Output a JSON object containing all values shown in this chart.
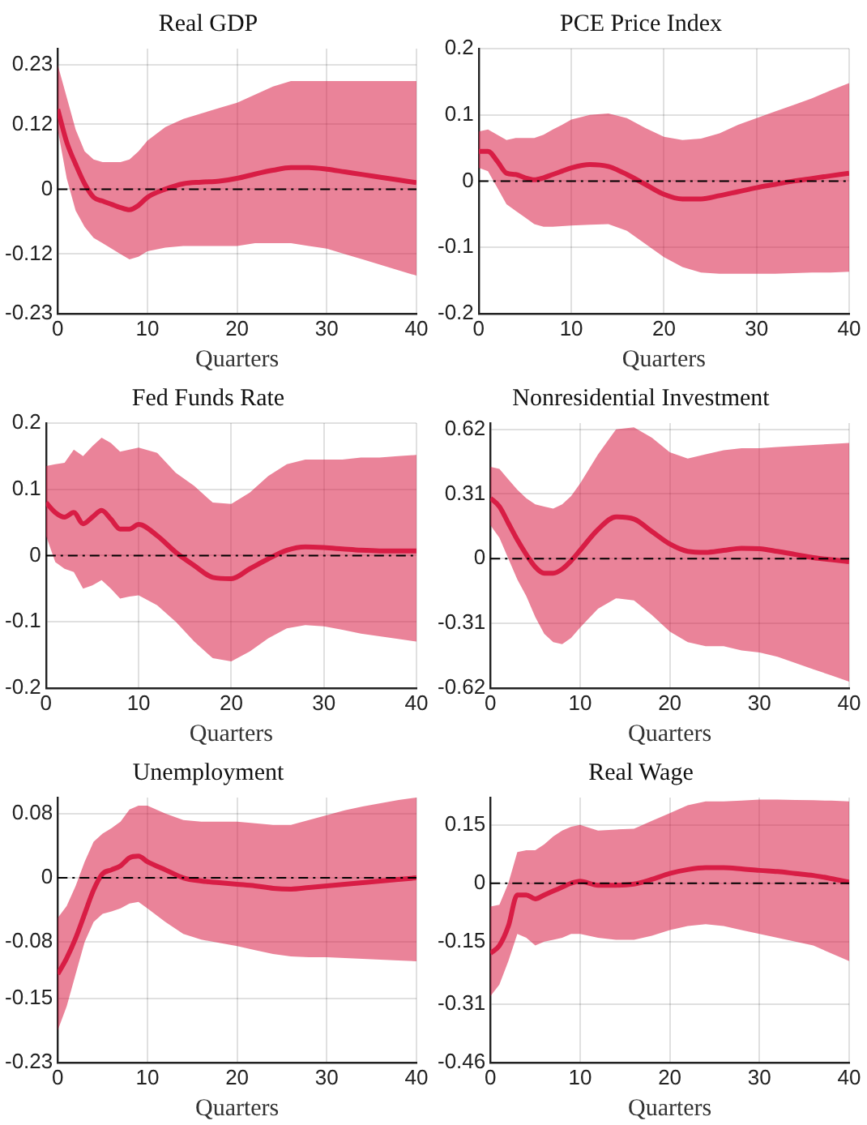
{
  "chart_data": [
    {
      "type": "line",
      "title": "Real GDP",
      "xlabel": "Quarters",
      "xlim": [
        0,
        40
      ],
      "xticks": [
        0,
        10,
        20,
        30,
        40
      ],
      "ylim": [
        -0.23,
        0.26
      ],
      "yticks": [
        -0.23,
        -0.12,
        0,
        0.12,
        0.23
      ],
      "grid": true,
      "ref_lines": [
        {
          "axis": "y",
          "value": 0,
          "color": "#000000",
          "line_style": "dashed"
        }
      ],
      "x": [
        0,
        1,
        2,
        3,
        4,
        5,
        6,
        7,
        8,
        9,
        10,
        12,
        14,
        16,
        18,
        20,
        22,
        24,
        26,
        28,
        30,
        32,
        34,
        36,
        38,
        40
      ],
      "series": [
        {
          "color": "#d81e45",
          "values": [
            0.148,
            0.087,
            0.046,
            0.01,
            -0.015,
            -0.022,
            -0.028,
            -0.034,
            -0.038,
            -0.03,
            -0.015,
            0.0,
            0.01,
            0.013,
            0.015,
            0.02,
            0.028,
            0.035,
            0.04,
            0.04,
            0.037,
            0.032,
            0.027,
            0.022,
            0.017,
            0.012
          ],
          "upper": [
            0.23,
            0.17,
            0.11,
            0.07,
            0.055,
            0.05,
            0.05,
            0.05,
            0.055,
            0.07,
            0.09,
            0.115,
            0.13,
            0.14,
            0.15,
            0.16,
            0.175,
            0.19,
            0.2,
            0.2,
            0.2,
            0.2,
            0.2,
            0.2,
            0.2,
            0.2
          ],
          "lower": [
            0.11,
            0.02,
            -0.04,
            -0.07,
            -0.09,
            -0.1,
            -0.11,
            -0.12,
            -0.13,
            -0.125,
            -0.115,
            -0.108,
            -0.105,
            -0.105,
            -0.105,
            -0.105,
            -0.1,
            -0.1,
            -0.1,
            -0.105,
            -0.11,
            -0.12,
            -0.13,
            -0.14,
            -0.15,
            -0.16
          ]
        }
      ]
    },
    {
      "type": "line",
      "title": "PCE Price Index",
      "xlabel": "Quarters",
      "xlim": [
        0,
        40
      ],
      "xticks": [
        0,
        10,
        20,
        30,
        40
      ],
      "ylim": [
        -0.2,
        0.2
      ],
      "yticks": [
        -0.2,
        -0.1,
        0,
        0.1,
        0.2
      ],
      "grid": true,
      "ref_lines": [
        {
          "axis": "y",
          "value": 0,
          "color": "#000000",
          "line_style": "dashed"
        }
      ],
      "x": [
        0,
        1,
        2,
        3,
        4,
        5,
        6,
        7,
        8,
        9,
        10,
        12,
        14,
        16,
        18,
        20,
        22,
        24,
        26,
        28,
        30,
        32,
        34,
        36,
        38,
        40
      ],
      "series": [
        {
          "color": "#d81e45",
          "values": [
            0.045,
            0.045,
            0.03,
            0.012,
            0.01,
            0.005,
            0.002,
            0.005,
            0.01,
            0.015,
            0.02,
            0.025,
            0.022,
            0.01,
            -0.005,
            -0.02,
            -0.027,
            -0.027,
            -0.022,
            -0.016,
            -0.01,
            -0.005,
            0.0,
            0.004,
            0.008,
            0.012
          ],
          "upper": [
            0.075,
            0.078,
            0.07,
            0.062,
            0.065,
            0.065,
            0.065,
            0.07,
            0.078,
            0.085,
            0.093,
            0.1,
            0.102,
            0.095,
            0.08,
            0.067,
            0.062,
            0.064,
            0.072,
            0.085,
            0.095,
            0.105,
            0.115,
            0.125,
            0.137,
            0.148
          ],
          "lower": [
            0.02,
            0.015,
            -0.01,
            -0.035,
            -0.045,
            -0.055,
            -0.065,
            -0.069,
            -0.069,
            -0.068,
            -0.067,
            -0.066,
            -0.065,
            -0.075,
            -0.095,
            -0.115,
            -0.13,
            -0.138,
            -0.14,
            -0.14,
            -0.14,
            -0.14,
            -0.139,
            -0.138,
            -0.138,
            -0.137
          ]
        }
      ]
    },
    {
      "type": "line",
      "title": "Fed Funds Rate",
      "xlabel": "Quarters",
      "xlim": [
        0,
        40
      ],
      "xticks": [
        0,
        10,
        20,
        30,
        40
      ],
      "ylim": [
        -0.2,
        0.2
      ],
      "yticks": [
        -0.2,
        -0.1,
        0,
        0.1,
        0.2
      ],
      "grid": true,
      "ref_lines": [
        {
          "axis": "y",
          "value": 0,
          "color": "#000000",
          "line_style": "dashed"
        }
      ],
      "x": [
        0,
        1,
        2,
        3,
        4,
        5,
        6,
        7,
        8,
        9,
        10,
        12,
        14,
        16,
        18,
        20,
        22,
        24,
        26,
        28,
        30,
        32,
        34,
        36,
        38,
        40
      ],
      "series": [
        {
          "color": "#d81e45",
          "values": [
            0.08,
            0.065,
            0.058,
            0.065,
            0.048,
            0.058,
            0.068,
            0.055,
            0.04,
            0.04,
            0.047,
            0.03,
            0.005,
            -0.015,
            -0.033,
            -0.035,
            -0.02,
            -0.005,
            0.008,
            0.013,
            0.012,
            0.01,
            0.008,
            0.007,
            0.007,
            0.007
          ],
          "upper": [
            0.135,
            0.138,
            0.14,
            0.16,
            0.15,
            0.165,
            0.178,
            0.17,
            0.157,
            0.16,
            0.163,
            0.155,
            0.125,
            0.105,
            0.08,
            0.078,
            0.095,
            0.12,
            0.138,
            0.145,
            0.145,
            0.145,
            0.148,
            0.148,
            0.15,
            0.152
          ],
          "lower": [
            0.03,
            -0.01,
            -0.02,
            -0.025,
            -0.05,
            -0.045,
            -0.037,
            -0.05,
            -0.065,
            -0.062,
            -0.06,
            -0.075,
            -0.1,
            -0.13,
            -0.155,
            -0.16,
            -0.145,
            -0.125,
            -0.11,
            -0.105,
            -0.107,
            -0.112,
            -0.118,
            -0.122,
            -0.126,
            -0.13
          ]
        }
      ]
    },
    {
      "type": "line",
      "title": "Nonresidential Investment",
      "xlabel": "Quarters",
      "xlim": [
        0,
        40
      ],
      "xticks": [
        0,
        10,
        20,
        30,
        40
      ],
      "ylim": [
        -0.62,
        0.65
      ],
      "yticks": [
        -0.62,
        -0.31,
        0,
        0.31,
        0.62
      ],
      "grid": true,
      "ref_lines": [
        {
          "axis": "y",
          "value": 0,
          "color": "#000000",
          "line_style": "dashed"
        }
      ],
      "x": [
        0,
        1,
        2,
        3,
        4,
        5,
        6,
        7,
        8,
        9,
        10,
        12,
        14,
        16,
        18,
        20,
        22,
        24,
        26,
        28,
        30,
        32,
        34,
        36,
        38,
        40
      ],
      "series": [
        {
          "color": "#d81e45",
          "values": [
            0.29,
            0.25,
            0.17,
            0.09,
            0.02,
            -0.04,
            -0.07,
            -0.07,
            -0.05,
            -0.01,
            0.04,
            0.14,
            0.2,
            0.19,
            0.13,
            0.07,
            0.035,
            0.03,
            0.04,
            0.05,
            0.048,
            0.035,
            0.02,
            0.005,
            -0.005,
            -0.015
          ],
          "upper": [
            0.44,
            0.43,
            0.38,
            0.33,
            0.29,
            0.26,
            0.25,
            0.24,
            0.26,
            0.3,
            0.36,
            0.5,
            0.62,
            0.63,
            0.58,
            0.51,
            0.48,
            0.5,
            0.52,
            0.53,
            0.53,
            0.535,
            0.54,
            0.545,
            0.55,
            0.555
          ],
          "lower": [
            0.16,
            0.1,
            0.0,
            -0.1,
            -0.18,
            -0.28,
            -0.36,
            -0.4,
            -0.41,
            -0.38,
            -0.33,
            -0.24,
            -0.19,
            -0.2,
            -0.27,
            -0.35,
            -0.4,
            -0.42,
            -0.42,
            -0.44,
            -0.45,
            -0.47,
            -0.5,
            -0.53,
            -0.56,
            -0.59
          ]
        }
      ]
    },
    {
      "type": "line",
      "title": "Unemployment",
      "xlabel": "Quarters",
      "xlim": [
        0,
        40
      ],
      "xticks": [
        0,
        10,
        20,
        30,
        40
      ],
      "ylim": [
        -0.23,
        0.1
      ],
      "yticks": [
        -0.23,
        -0.15,
        -0.08,
        0,
        0.08
      ],
      "grid": true,
      "ref_lines": [
        {
          "axis": "y",
          "value": 0,
          "color": "#000000",
          "line_style": "dashed"
        }
      ],
      "x": [
        0,
        1,
        2,
        3,
        4,
        5,
        6,
        7,
        8,
        9,
        10,
        12,
        14,
        16,
        18,
        20,
        22,
        24,
        26,
        28,
        30,
        32,
        34,
        36,
        38,
        40
      ],
      "series": [
        {
          "color": "#d81e45",
          "values": [
            -0.12,
            -0.1,
            -0.075,
            -0.045,
            -0.015,
            0.005,
            0.01,
            0.015,
            0.025,
            0.027,
            0.02,
            0.01,
            0.0,
            -0.004,
            -0.006,
            -0.008,
            -0.01,
            -0.013,
            -0.014,
            -0.012,
            -0.01,
            -0.008,
            -0.006,
            -0.004,
            -0.002,
            0.0
          ],
          "upper": [
            -0.05,
            -0.035,
            -0.01,
            0.02,
            0.045,
            0.055,
            0.062,
            0.07,
            0.085,
            0.09,
            0.09,
            0.08,
            0.072,
            0.07,
            0.07,
            0.07,
            0.068,
            0.066,
            0.066,
            0.072,
            0.078,
            0.084,
            0.089,
            0.093,
            0.097,
            0.1
          ],
          "lower": [
            -0.19,
            -0.16,
            -0.12,
            -0.08,
            -0.055,
            -0.045,
            -0.042,
            -0.038,
            -0.032,
            -0.03,
            -0.038,
            -0.055,
            -0.07,
            -0.077,
            -0.081,
            -0.085,
            -0.09,
            -0.095,
            -0.098,
            -0.099,
            -0.099,
            -0.1,
            -0.101,
            -0.102,
            -0.103,
            -0.104
          ]
        }
      ]
    },
    {
      "type": "line",
      "title": "Real Wage",
      "xlabel": "Quarters",
      "xlim": [
        0,
        40
      ],
      "xticks": [
        0,
        10,
        20,
        30,
        40
      ],
      "ylim": [
        -0.46,
        0.22
      ],
      "yticks": [
        -0.46,
        -0.31,
        -0.15,
        0,
        0.15
      ],
      "grid": true,
      "ref_lines": [
        {
          "axis": "y",
          "value": 0,
          "color": "#000000",
          "line_style": "dashed"
        }
      ],
      "x": [
        0,
        1,
        2,
        3,
        4,
        5,
        6,
        7,
        8,
        9,
        10,
        12,
        14,
        16,
        18,
        20,
        22,
        24,
        26,
        28,
        30,
        32,
        34,
        36,
        38,
        40
      ],
      "series": [
        {
          "color": "#d81e45",
          "values": [
            -0.18,
            -0.16,
            -0.11,
            -0.03,
            -0.03,
            -0.04,
            -0.03,
            -0.02,
            -0.01,
            0.0,
            0.005,
            -0.005,
            -0.005,
            -0.002,
            0.01,
            0.025,
            0.035,
            0.04,
            0.04,
            0.037,
            0.033,
            0.03,
            0.025,
            0.02,
            0.012,
            0.003
          ],
          "upper": [
            -0.06,
            -0.055,
            0.0,
            0.08,
            0.085,
            0.085,
            0.1,
            0.12,
            0.135,
            0.145,
            0.15,
            0.135,
            0.138,
            0.14,
            0.16,
            0.18,
            0.2,
            0.21,
            0.21,
            0.212,
            0.215,
            0.215,
            0.214,
            0.213,
            0.212,
            0.21
          ],
          "lower": [
            -0.29,
            -0.26,
            -0.2,
            -0.13,
            -0.14,
            -0.16,
            -0.15,
            -0.145,
            -0.14,
            -0.13,
            -0.13,
            -0.14,
            -0.145,
            -0.145,
            -0.135,
            -0.12,
            -0.11,
            -0.105,
            -0.11,
            -0.12,
            -0.13,
            -0.14,
            -0.15,
            -0.16,
            -0.18,
            -0.2
          ]
        }
      ]
    }
  ]
}
